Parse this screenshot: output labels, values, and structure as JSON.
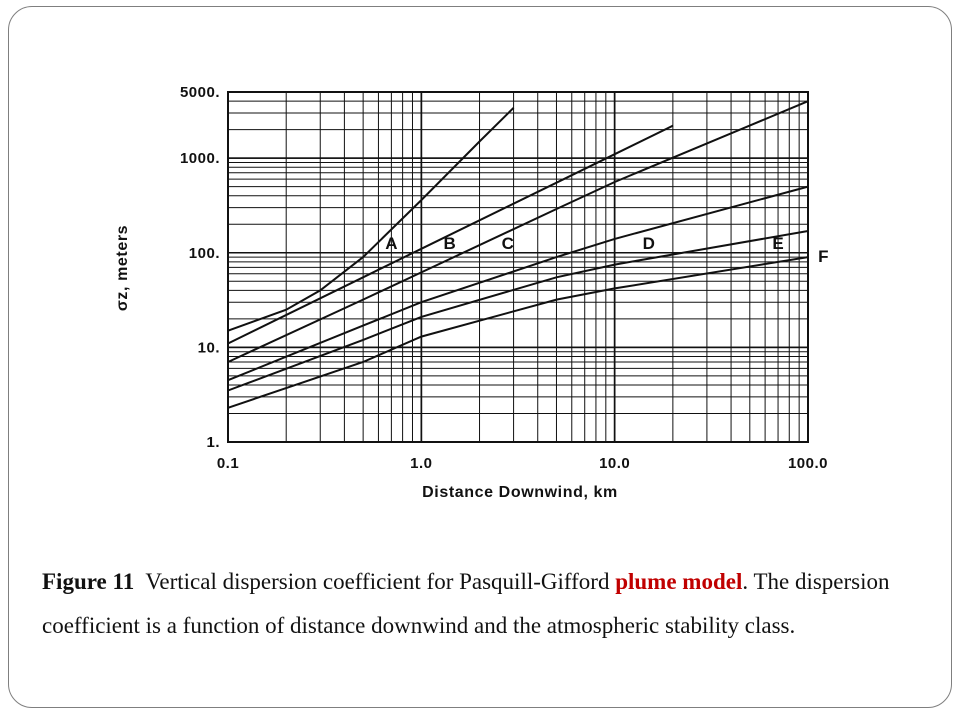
{
  "caption": {
    "figure_label": "Figure 11",
    "text_before": "Vertical dispersion coefficient for Pasquill-Gifford",
    "highlight_word_1": "plume",
    "highlight_word_2": "model",
    "text_after": ". The dispersion coefficient is a function of distance downwind and the atmospheric stability class."
  },
  "colors": {
    "highlight": "#c00000",
    "frame": "#7f7f7f"
  },
  "chart_data": {
    "type": "line",
    "xlabel": "Distance Downwind, km",
    "ylabel": "σz, meters",
    "xscale": "log",
    "yscale": "log",
    "xlim": [
      0.1,
      100
    ],
    "ylim": [
      1,
      5000
    ],
    "x_ticks": [
      0.1,
      1,
      10,
      100
    ],
    "x_tick_labels": [
      "0.1",
      "1.0",
      "10.0",
      "100.0"
    ],
    "y_ticks": [
      1,
      10,
      100,
      1000,
      5000
    ],
    "y_tick_labels": [
      "1.",
      "10.",
      "100.",
      "1000.",
      "5000."
    ],
    "grid": true,
    "series": [
      {
        "name": "A",
        "label_at": [
          0.7,
          110
        ],
        "points": [
          [
            0.1,
            15
          ],
          [
            0.2,
            25
          ],
          [
            0.3,
            40
          ],
          [
            0.5,
            90
          ],
          [
            1,
            360
          ],
          [
            2,
            1500
          ],
          [
            3,
            3400
          ]
        ]
      },
      {
        "name": "B",
        "label_at": [
          1.4,
          110
        ],
        "points": [
          [
            0.1,
            11
          ],
          [
            0.5,
            55
          ],
          [
            1,
            110
          ],
          [
            5,
            550
          ],
          [
            10,
            1100
          ],
          [
            20,
            2200
          ]
        ]
      },
      {
        "name": "C",
        "label_at": [
          2.8,
          110
        ],
        "points": [
          [
            0.1,
            7
          ],
          [
            0.5,
            32
          ],
          [
            1,
            62
          ],
          [
            5,
            290
          ],
          [
            10,
            560
          ],
          [
            100,
            4000
          ]
        ]
      },
      {
        "name": "D",
        "label_at": [
          15,
          110
        ],
        "points": [
          [
            0.1,
            4.5
          ],
          [
            0.5,
            17
          ],
          [
            1,
            30
          ],
          [
            5,
            90
          ],
          [
            10,
            140
          ],
          [
            100,
            500
          ]
        ]
      },
      {
        "name": "E",
        "label_at": [
          70,
          110
        ],
        "points": [
          [
            0.1,
            3.5
          ],
          [
            0.5,
            12
          ],
          [
            1,
            21
          ],
          [
            5,
            55
          ],
          [
            10,
            75
          ],
          [
            100,
            170
          ]
        ]
      },
      {
        "name": "F",
        "label_at": [
          120,
          80
        ],
        "points": [
          [
            0.1,
            2.3
          ],
          [
            0.5,
            7
          ],
          [
            1,
            13
          ],
          [
            5,
            32
          ],
          [
            10,
            42
          ],
          [
            100,
            90
          ]
        ]
      }
    ]
  }
}
